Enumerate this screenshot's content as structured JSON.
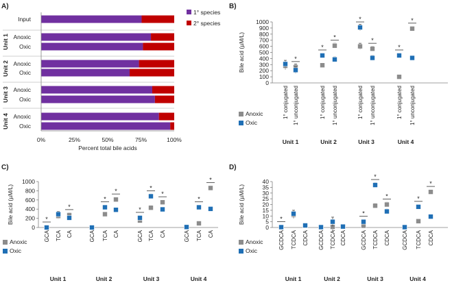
{
  "colors": {
    "primary": "#7030a0",
    "secondary": "#c00000",
    "anoxic": "#8c8c8c",
    "oxic": "#1f6fb5",
    "axis": "#808080",
    "grid": "#bfbfbf"
  },
  "chart_data": [
    {
      "panel": "A)",
      "type": "bar",
      "orientation": "horizontal-stacked",
      "xlabel": "Percent total bile acids",
      "xlim": [
        0,
        100
      ],
      "xticks": [
        "0%",
        "25%",
        "50%",
        "75%",
        "100%"
      ],
      "legend": [
        "1° species",
        "2° species"
      ],
      "rows": [
        {
          "group": "",
          "label": "Input",
          "primary": 75.5,
          "secondary": 24.5
        },
        {
          "group": "Unit 1",
          "label": "Anoxic",
          "primary": 82.5,
          "secondary": 17.5
        },
        {
          "group": "Unit 1",
          "label": "Oxic",
          "primary": 76.5,
          "secondary": 23.5
        },
        {
          "group": "Unit 2",
          "label": "Anoxic",
          "primary": 73.5,
          "secondary": 26.5
        },
        {
          "group": "Unit 2",
          "label": "Oxic",
          "primary": 66.5,
          "secondary": 33.5
        },
        {
          "group": "Unit 3",
          "label": "Anoxic",
          "primary": 83.5,
          "secondary": 16.5
        },
        {
          "group": "Unit 3",
          "label": "Oxic",
          "primary": 85.5,
          "secondary": 14.5
        },
        {
          "group": "Unit 4",
          "label": "Anoxic",
          "primary": 88.5,
          "secondary": 11.5
        },
        {
          "group": "Unit 4",
          "label": "Oxic",
          "primary": 97,
          "secondary": 3
        }
      ]
    },
    {
      "panel": "B)",
      "type": "scatter",
      "ylabel": "Bile acid (µM/L)",
      "ylim": [
        0,
        1000
      ],
      "yticks": [
        0,
        100,
        200,
        300,
        400,
        500,
        600,
        700,
        800,
        900,
        1000
      ],
      "units": [
        "Unit 1",
        "Unit 2",
        "Unit 3",
        "Unit 4"
      ],
      "categories": [
        "1° conjugated",
        "1° unconjugated"
      ],
      "legend": [
        "Anoxic",
        "Oxic"
      ],
      "points": [
        {
          "unit": 0,
          "cat": 0,
          "anoxic": 280,
          "oxic": 310,
          "err": 60,
          "sig": false
        },
        {
          "unit": 0,
          "cat": 1,
          "anoxic": 260,
          "oxic": 210,
          "err": 50,
          "sig": true
        },
        {
          "unit": 1,
          "cat": 0,
          "anoxic": 290,
          "oxic": 450,
          "err": 30,
          "sig": true
        },
        {
          "unit": 1,
          "cat": 1,
          "anoxic": 610,
          "oxic": 385,
          "err": 40,
          "sig": true
        },
        {
          "unit": 2,
          "cat": 0,
          "anoxic": 600,
          "oxic": 910,
          "err": 50,
          "sig": true
        },
        {
          "unit": 2,
          "cat": 1,
          "anoxic": 560,
          "oxic": 410,
          "err": 40,
          "sig": true
        },
        {
          "unit": 3,
          "cat": 0,
          "anoxic": 100,
          "oxic": 450,
          "err": 20,
          "sig": true
        },
        {
          "unit": 3,
          "cat": 1,
          "anoxic": 890,
          "oxic": 410,
          "err": 30,
          "sig": true
        }
      ]
    },
    {
      "panel": "C)",
      "type": "scatter",
      "ylabel": "Bile acid (µM/L)",
      "ylim": [
        0,
        1000
      ],
      "yticks": [
        0,
        200,
        400,
        600,
        800,
        1000
      ],
      "units": [
        "Unit 1",
        "Unit 2",
        "Unit 3",
        "Unit 4"
      ],
      "categories": [
        "GCA",
        "TCA",
        "CA"
      ],
      "legend": [
        "Anoxic",
        "Oxic"
      ],
      "points": [
        {
          "unit": 0,
          "cat": 0,
          "anoxic": 0,
          "oxic": 0,
          "err": 0,
          "sig": true
        },
        {
          "unit": 0,
          "cat": 1,
          "anoxic": 250,
          "oxic": 290,
          "err": 60,
          "sig": false
        },
        {
          "unit": 0,
          "cat": 2,
          "anoxic": 270,
          "oxic": 210,
          "err": 50,
          "sig": true
        },
        {
          "unit": 1,
          "cat": 0,
          "anoxic": 0,
          "oxic": 0,
          "err": 0,
          "sig": false
        },
        {
          "unit": 1,
          "cat": 1,
          "anoxic": 290,
          "oxic": 440,
          "err": 30,
          "sig": true
        },
        {
          "unit": 1,
          "cat": 2,
          "anoxic": 610,
          "oxic": 385,
          "err": 40,
          "sig": true
        },
        {
          "unit": 2,
          "cat": 0,
          "anoxic": 150,
          "oxic": 210,
          "err": 30,
          "sig": true
        },
        {
          "unit": 2,
          "cat": 1,
          "anoxic": 430,
          "oxic": 680,
          "err": 50,
          "sig": true
        },
        {
          "unit": 2,
          "cat": 2,
          "anoxic": 550,
          "oxic": 395,
          "err": 40,
          "sig": true
        },
        {
          "unit": 3,
          "cat": 0,
          "anoxic": 5,
          "oxic": 10,
          "err": 0,
          "sig": false
        },
        {
          "unit": 3,
          "cat": 1,
          "anoxic": 90,
          "oxic": 440,
          "err": 20,
          "sig": true
        },
        {
          "unit": 3,
          "cat": 2,
          "anoxic": 860,
          "oxic": 405,
          "err": 30,
          "sig": true
        }
      ]
    },
    {
      "panel": "D)",
      "type": "scatter",
      "ylabel": "Bile acid (µM/L)",
      "ylim": [
        0,
        40
      ],
      "yticks": [
        0,
        5,
        10,
        15,
        20,
        25,
        30,
        35,
        40
      ],
      "units": [
        "Unit 1",
        "Unit 2",
        "Unit 3",
        "Unit 4"
      ],
      "categories": [
        "GCDCA",
        "TCDCA",
        "CDCA"
      ],
      "legend": [
        "Anoxic",
        "Oxic"
      ],
      "points": [
        {
          "unit": 0,
          "cat": 0,
          "anoxic": 0.2,
          "oxic": 0.3,
          "err": 0,
          "sig": true
        },
        {
          "unit": 0,
          "cat": 1,
          "anoxic": 11,
          "oxic": 12,
          "err": 3,
          "sig": false
        },
        {
          "unit": 0,
          "cat": 2,
          "anoxic": 1.5,
          "oxic": 1.8,
          "err": 1,
          "sig": false
        },
        {
          "unit": 1,
          "cat": 0,
          "anoxic": 0.2,
          "oxic": 0.3,
          "err": 0,
          "sig": false
        },
        {
          "unit": 1,
          "cat": 1,
          "anoxic": 0.5,
          "oxic": 5,
          "err": 4,
          "sig": false
        },
        {
          "unit": 1,
          "cat": 2,
          "anoxic": 0.5,
          "oxic": 0.8,
          "err": 0.5,
          "sig": false
        },
        {
          "unit": 2,
          "cat": 0,
          "anoxic": 1.5,
          "oxic": 5,
          "err": 1.5,
          "sig": true
        },
        {
          "unit": 2,
          "cat": 1,
          "anoxic": 19,
          "oxic": 37,
          "err": 2,
          "sig": true
        },
        {
          "unit": 2,
          "cat": 2,
          "anoxic": 20,
          "oxic": 14,
          "err": 2,
          "sig": true
        },
        {
          "unit": 3,
          "cat": 0,
          "anoxic": 0.2,
          "oxic": 0.3,
          "err": 0,
          "sig": false
        },
        {
          "unit": 3,
          "cat": 1,
          "anoxic": 5.5,
          "oxic": 18,
          "err": 1,
          "sig": true
        },
        {
          "unit": 3,
          "cat": 2,
          "anoxic": 31,
          "oxic": 9.5,
          "err": 1.5,
          "sig": true
        }
      ]
    }
  ]
}
